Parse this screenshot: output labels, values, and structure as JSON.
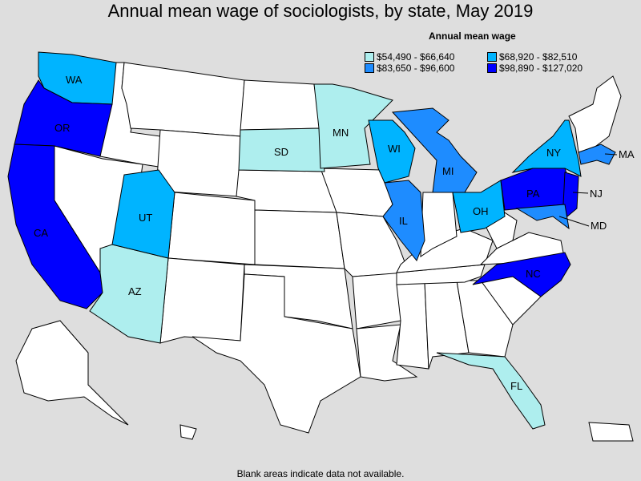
{
  "title": "Annual mean wage of sociologists, by state, May 2019",
  "legend": {
    "title": "Annual mean wage",
    "items": [
      {
        "label": "$54,490 - $66,640",
        "color": "#aeeeee"
      },
      {
        "label": "$68,920 - $82,510",
        "color": "#00b4ff"
      },
      {
        "label": "$83,650 - $96,600",
        "color": "#1e8cff"
      },
      {
        "label": "$98,890 - $127,020",
        "color": "#0000ff"
      }
    ]
  },
  "footnote": "Blank areas indicate data not available.",
  "colors": {
    "no_data": "#ffffff",
    "background": "#dedede"
  },
  "state_labels": {
    "WA": "WA",
    "OR": "OR",
    "CA": "CA",
    "AZ": "AZ",
    "UT": "UT",
    "SD": "SD",
    "MN": "MN",
    "WI": "WI",
    "IL": "IL",
    "MI": "MI",
    "OH": "OH",
    "NY": "NY",
    "PA": "PA",
    "NJ": "NJ",
    "MD": "MD",
    "MA": "MA",
    "NC": "NC",
    "FL": "FL"
  }
}
